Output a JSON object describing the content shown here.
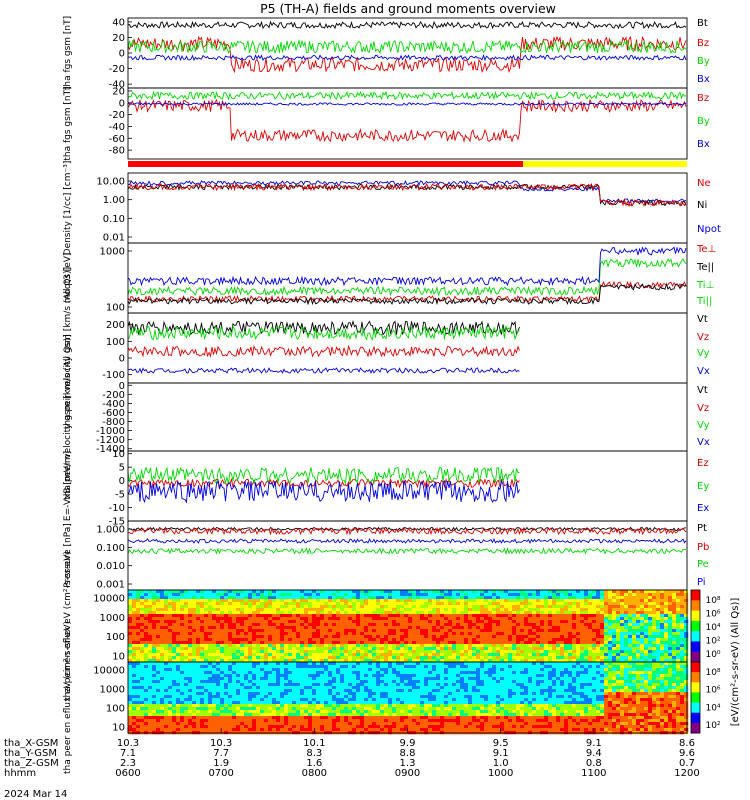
{
  "title": "P5 (TH-A) fields and ground moments overview",
  "date_label": "2024 Mar 14",
  "colorbar_label": "[eV/(cm²-s-sr-eV) (All Qs)]",
  "colorbar_ticks": [
    "10⁸",
    "10⁶",
    "10⁴",
    "10²",
    "10⁰",
    "10⁸",
    "10⁶",
    "10⁴",
    "10²"
  ],
  "time_ticks": [
    "0600",
    "0700",
    "0800",
    "0900",
    "1000",
    "1100",
    "1200"
  ],
  "orbit_rows": [
    {
      "label": "tha_X-GSM",
      "values": [
        "10.3",
        "10.3",
        "10.1",
        "9.9",
        "9.5",
        "9.1",
        "8.6"
      ]
    },
    {
      "label": "tha_Y-GSM",
      "values": [
        "7.1",
        "7.7",
        "8.3",
        "8.8",
        "9.1",
        "9.4",
        "9.6"
      ]
    },
    {
      "label": "tha_Z-GSM",
      "values": [
        "2.3",
        "1.9",
        "1.6",
        "1.3",
        "1.0",
        "0.8",
        "0.7"
      ]
    },
    {
      "label": "hhmm",
      "values": [
        "0600",
        "0700",
        "0800",
        "0900",
        "1000",
        "1100",
        "1200"
      ]
    }
  ],
  "colors": {
    "black": "#000000",
    "red": "#e00000",
    "green": "#00d800",
    "blue": "#0000e0",
    "bar_red": "#ff0000",
    "bar_yellow": "#ffff00"
  },
  "chart_data": [
    {
      "id": "p1",
      "type": "line",
      "ylabel": "tha fgs gsm [nT]",
      "ylim": [
        -45,
        45
      ],
      "yticks": [
        40,
        20,
        0,
        -20,
        -40
      ],
      "series": [
        {
          "name": "Bt",
          "color": "black"
        },
        {
          "name": "Bz",
          "color": "red"
        },
        {
          "name": "By",
          "color": "green"
        },
        {
          "name": "Bx",
          "color": "blue"
        }
      ]
    },
    {
      "id": "p2",
      "type": "line",
      "ylabel": "tha fgs gsm [nT]",
      "ylim": [
        -95,
        25
      ],
      "yticks": [
        20,
        0,
        -20,
        -40,
        -60,
        -80
      ],
      "series": [
        {
          "name": "Bz",
          "color": "red"
        },
        {
          "name": "By",
          "color": "green"
        },
        {
          "name": "Bx",
          "color": "blue"
        }
      ]
    },
    {
      "id": "p3",
      "type": "line",
      "ylabel": "Density [1/cc] [cm⁻³]",
      "yscale": "log",
      "yticks": [
        "10.00",
        "1.00",
        "0.10",
        "0.01"
      ],
      "series": [
        {
          "name": "Ne",
          "color": "red"
        },
        {
          "name": "Ni",
          "color": "black"
        },
        {
          "name": "Npot",
          "color": "blue"
        }
      ]
    },
    {
      "id": "p4",
      "type": "line",
      "ylabel": "moqt3 [eV]",
      "yscale": "log",
      "yticks": [
        "1000",
        "100"
      ],
      "series": [
        {
          "name": "Te⊥",
          "color": "red"
        },
        {
          "name": "Te||",
          "color": "black"
        },
        {
          "name": "Ti⊥",
          "color": "green"
        },
        {
          "name": "Ti||",
          "color": "green"
        }
      ]
    },
    {
      "id": "p5",
      "type": "line",
      "ylabel": "tha peir velocity gsm [km/s (All Qs)]",
      "ylim": [
        -150,
        270
      ],
      "yticks": [
        200,
        100,
        0,
        -100
      ],
      "series": [
        {
          "name": "Vt",
          "color": "black"
        },
        {
          "name": "Vz",
          "color": "red"
        },
        {
          "name": "Vy",
          "color": "green"
        },
        {
          "name": "Vx",
          "color": "blue"
        }
      ]
    },
    {
      "id": "p6",
      "type": "line",
      "ylabel": "tha peer velocity gsm [km/s (All Qs)]",
      "ylim": [
        -1450,
        50
      ],
      "yticks": [
        0,
        -200,
        -400,
        -600,
        -800,
        -1000,
        -1200,
        -1400
      ],
      "series": [
        {
          "name": "Vt",
          "color": "black"
        },
        {
          "name": "Vz",
          "color": "red"
        },
        {
          "name": "Vy",
          "color": "green"
        },
        {
          "name": "Vx",
          "color": "blue"
        }
      ]
    },
    {
      "id": "p7",
      "type": "line",
      "ylabel": "E=-VxB [mV/m]",
      "ylim": [
        -15,
        11
      ],
      "yticks": [
        10,
        5,
        0,
        -5,
        -10,
        -15
      ],
      "series": [
        {
          "name": "Ez",
          "color": "red"
        },
        {
          "name": "Ey",
          "color": "green"
        },
        {
          "name": "Ex",
          "color": "blue"
        }
      ]
    },
    {
      "id": "p8",
      "type": "line",
      "ylabel": "Pressure [nPa]",
      "yscale": "log",
      "yticks": [
        "1.000",
        "0.100",
        "0.010",
        "0.001"
      ],
      "series": [
        {
          "name": "Pt",
          "color": "black"
        },
        {
          "name": "Pb",
          "color": "red"
        },
        {
          "name": "Pe",
          "color": "green"
        },
        {
          "name": "Pi",
          "color": "blue"
        }
      ]
    },
    {
      "id": "p9",
      "type": "heatmap",
      "ylabel": "tha peir en eflux eV (cm²-s-sr-eV)",
      "yticks": [
        "10000",
        "1000",
        "100",
        "10"
      ]
    },
    {
      "id": "p10",
      "type": "heatmap",
      "ylabel": "tha peer en eflux eV (cm²-s-sr-eV)",
      "yticks": [
        "10000",
        "1000",
        "100",
        "10"
      ]
    }
  ]
}
